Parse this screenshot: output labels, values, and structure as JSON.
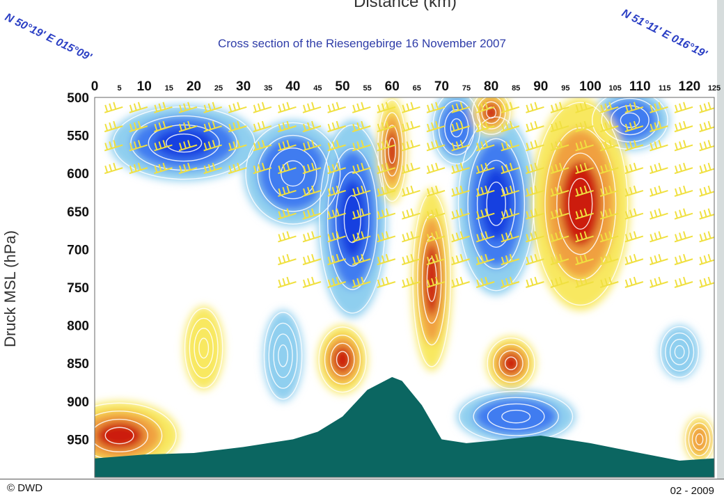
{
  "slide": {
    "top_cut_label": "Distance (km)",
    "coord_left": "N 50°19' E 015°09'",
    "coord_right": "N 51°11' E 016°19'",
    "copyright": "© DWD",
    "date": "02 - 2009"
  },
  "chart_data": {
    "type": "heatmap",
    "title": "Cross section of the Riesengebirge 16 November 2007",
    "xlabel": "Distance (km)",
    "ylabel": "Druck MSL (hPa)",
    "xlim": [
      0,
      125
    ],
    "ylim": [
      500,
      1000
    ],
    "y_inverted": true,
    "x_ticks": [
      0,
      5,
      10,
      15,
      20,
      25,
      30,
      35,
      40,
      45,
      50,
      55,
      60,
      65,
      70,
      75,
      80,
      85,
      90,
      95,
      100,
      105,
      110,
      115,
      120,
      125
    ],
    "x_major_ticks": [
      0,
      10,
      20,
      30,
      40,
      50,
      60,
      70,
      80,
      90,
      100,
      110,
      120
    ],
    "y_ticks": [
      500,
      550,
      600,
      650,
      700,
      750,
      800,
      850,
      900,
      950
    ],
    "field_colors": {
      "strong_negative": "#1640e0",
      "negative": "#3f7cf0",
      "weak_negative": "#8fcfef",
      "near_zero": "#ffffff",
      "weak_positive": "#f8e860",
      "positive": "#f0a040",
      "strong_positive": "#cc1a10",
      "terrain": "#0b6661",
      "contours": "#ffffff",
      "wind_barbs": "#f0e040"
    },
    "terrain_profile": {
      "x": [
        0,
        10,
        20,
        30,
        40,
        45,
        50,
        55,
        60,
        62,
        66,
        70,
        75,
        80,
        90,
        100,
        110,
        118,
        125
      ],
      "p": [
        975,
        970,
        968,
        960,
        950,
        940,
        920,
        885,
        868,
        873,
        905,
        950,
        955,
        952,
        945,
        955,
        968,
        978,
        975
      ]
    },
    "cells": [
      {
        "x": 18,
        "p": 560,
        "rx": 15,
        "rp": 50,
        "sign": "negative",
        "level": 3
      },
      {
        "x": 40,
        "p": 600,
        "rx": 10,
        "rp": 70,
        "sign": "negative",
        "level": 2
      },
      {
        "x": 52,
        "p": 660,
        "rx": 7,
        "rp": 130,
        "sign": "negative",
        "level": 3
      },
      {
        "x": 81,
        "p": 640,
        "rx": 8,
        "rp": 120,
        "sign": "negative",
        "level": 3
      },
      {
        "x": 73,
        "p": 540,
        "rx": 5,
        "rp": 50,
        "sign": "negative",
        "level": 2
      },
      {
        "x": 108,
        "p": 530,
        "rx": 8,
        "rp": 40,
        "sign": "negative",
        "level": 2
      },
      {
        "x": 85,
        "p": 920,
        "rx": 12,
        "rp": 35,
        "sign": "negative",
        "level": 2
      },
      {
        "x": 118,
        "p": 835,
        "rx": 4,
        "rp": 35,
        "sign": "negative",
        "level": 1
      },
      {
        "x": 38,
        "p": 840,
        "rx": 4,
        "rp": 60,
        "sign": "negative",
        "level": 1
      },
      {
        "x": 60,
        "p": 570,
        "rx": 3,
        "rp": 70,
        "sign": "positive",
        "level": 3
      },
      {
        "x": 68,
        "p": 740,
        "rx": 4,
        "rp": 120,
        "sign": "positive",
        "level": 3
      },
      {
        "x": 98,
        "p": 640,
        "rx": 10,
        "rp": 140,
        "sign": "positive",
        "level": 3
      },
      {
        "x": 80,
        "p": 520,
        "rx": 4,
        "rp": 30,
        "sign": "positive",
        "level": 3
      },
      {
        "x": 84,
        "p": 850,
        "rx": 5,
        "rp": 35,
        "sign": "positive",
        "level": 3
      },
      {
        "x": 50,
        "p": 845,
        "rx": 5,
        "rp": 45,
        "sign": "positive",
        "level": 3
      },
      {
        "x": 5,
        "p": 945,
        "rx": 12,
        "rp": 45,
        "sign": "positive",
        "level": 3
      },
      {
        "x": 22,
        "p": 830,
        "rx": 4,
        "rp": 55,
        "sign": "positive",
        "level": 1
      },
      {
        "x": 122,
        "p": 950,
        "rx": 3,
        "rp": 30,
        "sign": "positive",
        "level": 2
      }
    ]
  }
}
